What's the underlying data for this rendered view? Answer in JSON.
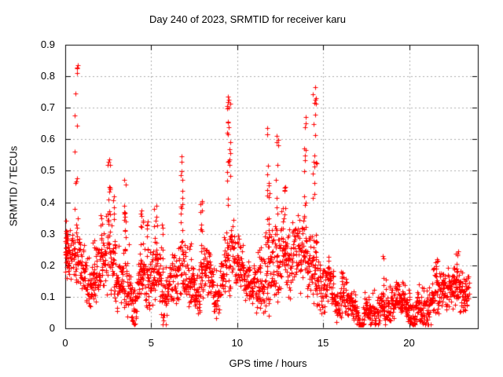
{
  "chart_data": {
    "type": "scatter",
    "title": "Day 240 of 2023, SRMTID for receiver karu",
    "xlabel": "GPS time / hours",
    "ylabel": "SRMTID / TECUs",
    "xlim": [
      0,
      24
    ],
    "ylim": [
      0,
      0.9
    ],
    "xticks": {
      "labels": [
        "0",
        "5",
        "10",
        "15",
        "20"
      ],
      "values": [
        0,
        5,
        10,
        15,
        20
      ]
    },
    "yticks": {
      "labels": [
        "0",
        "0.1",
        "0.2",
        "0.3",
        "0.4",
        "0.5",
        "0.6",
        "0.7",
        "0.8",
        "0.9"
      ],
      "values": [
        0,
        0.1,
        0.2,
        0.3,
        0.4,
        0.5,
        0.6,
        0.7,
        0.8,
        0.9
      ]
    },
    "grid": true,
    "legend": "none",
    "marker": "plus",
    "marker_color": "#ff0000",
    "grid_color": "#adadad",
    "axis_color": "#000000",
    "data_t_range": [
      0,
      23.5
    ],
    "sample_step_hours": 0.01,
    "seed": 20230240,
    "baseline_envelope": {
      "columns": [
        "hour",
        "center_tecu",
        "halfwidth_tecu"
      ],
      "rows": [
        [
          0.0,
          0.23,
          0.07
        ],
        [
          0.31,
          0.19,
          0.06
        ],
        [
          0.72,
          0.21,
          0.08
        ],
        [
          1.14,
          0.13,
          0.06
        ],
        [
          1.5,
          0.11,
          0.05
        ],
        [
          1.86,
          0.16,
          0.07
        ],
        [
          2.17,
          0.19,
          0.08
        ],
        [
          2.53,
          0.23,
          0.1
        ],
        [
          2.89,
          0.19,
          0.08
        ],
        [
          3.2,
          0.15,
          0.06
        ],
        [
          3.51,
          0.2,
          0.09
        ],
        [
          3.88,
          0.12,
          0.05
        ],
        [
          4.19,
          0.13,
          0.05
        ],
        [
          4.49,
          0.19,
          0.08
        ],
        [
          4.86,
          0.15,
          0.06
        ],
        [
          5.27,
          0.2,
          0.08
        ],
        [
          5.68,
          0.15,
          0.06
        ],
        [
          6.1,
          0.12,
          0.05
        ],
        [
          6.46,
          0.17,
          0.06
        ],
        [
          6.77,
          0.2,
          0.08
        ],
        [
          7.13,
          0.15,
          0.06
        ],
        [
          7.49,
          0.12,
          0.05
        ],
        [
          7.91,
          0.17,
          0.06
        ],
        [
          8.27,
          0.15,
          0.06
        ],
        [
          8.78,
          0.1,
          0.045
        ],
        [
          9.3,
          0.18,
          0.07
        ],
        [
          9.66,
          0.23,
          0.09
        ],
        [
          10.13,
          0.19,
          0.07
        ],
        [
          10.54,
          0.14,
          0.05
        ],
        [
          10.9,
          0.12,
          0.05
        ],
        [
          11.27,
          0.15,
          0.06
        ],
        [
          11.83,
          0.22,
          0.09
        ],
        [
          12.35,
          0.2,
          0.09
        ],
        [
          12.76,
          0.23,
          0.11
        ],
        [
          13.23,
          0.2,
          0.08
        ],
        [
          13.74,
          0.2,
          0.08
        ],
        [
          14.42,
          0.2,
          0.09
        ],
        [
          14.88,
          0.17,
          0.07
        ],
        [
          15.35,
          0.14,
          0.05
        ],
        [
          15.76,
          0.1,
          0.04
        ],
        [
          16.12,
          0.11,
          0.045
        ],
        [
          16.53,
          0.08,
          0.035
        ],
        [
          17.05,
          0.055,
          0.03
        ],
        [
          17.57,
          0.055,
          0.03
        ],
        [
          17.98,
          0.075,
          0.035
        ],
        [
          18.5,
          0.09,
          0.045
        ],
        [
          18.91,
          0.075,
          0.035
        ],
        [
          19.43,
          0.055,
          0.03
        ],
        [
          19.94,
          0.075,
          0.035
        ],
        [
          20.36,
          0.065,
          0.03
        ],
        [
          20.98,
          0.1,
          0.05
        ],
        [
          21.6,
          0.13,
          0.06
        ],
        [
          22.02,
          0.08,
          0.04
        ],
        [
          22.43,
          0.12,
          0.05
        ],
        [
          22.84,
          0.15,
          0.06
        ],
        [
          23.2,
          0.12,
          0.05
        ],
        [
          23.5,
          0.13,
          0.055
        ]
      ]
    },
    "bursts": {
      "columns": [
        "hour",
        "peak_tecu",
        "count",
        "spread_hours"
      ],
      "rows": [
        [
          0.07,
          0.31,
          18,
          0.07
        ],
        [
          0.64,
          0.835,
          13,
          0.1
        ],
        [
          1.67,
          0.28,
          6,
          0.07
        ],
        [
          2.12,
          0.36,
          9,
          0.07
        ],
        [
          2.53,
          0.535,
          15,
          0.08
        ],
        [
          2.84,
          0.42,
          8,
          0.06
        ],
        [
          3.49,
          0.47,
          14,
          0.07
        ],
        [
          4.45,
          0.375,
          11,
          0.1
        ],
        [
          4.75,
          0.34,
          7,
          0.07
        ],
        [
          5.27,
          0.39,
          11,
          0.1
        ],
        [
          5.63,
          0.33,
          7,
          0.06
        ],
        [
          6.77,
          0.545,
          16,
          0.07
        ],
        [
          7.27,
          0.27,
          5,
          0.06
        ],
        [
          7.9,
          0.405,
          11,
          0.06
        ],
        [
          9.5,
          0.735,
          26,
          0.1
        ],
        [
          11.26,
          0.25,
          5,
          0.06
        ],
        [
          11.82,
          0.635,
          20,
          0.1
        ],
        [
          12.33,
          0.61,
          13,
          0.08
        ],
        [
          12.72,
          0.45,
          12,
          0.1
        ],
        [
          13.95,
          0.67,
          12,
          0.08
        ],
        [
          14.5,
          0.765,
          24,
          0.11
        ],
        [
          16.1,
          0.18,
          5,
          0.06
        ],
        [
          18.5,
          0.23,
          6,
          0.04
        ],
        [
          21.6,
          0.215,
          7,
          0.08
        ],
        [
          22.8,
          0.245,
          8,
          0.08
        ]
      ]
    }
  }
}
